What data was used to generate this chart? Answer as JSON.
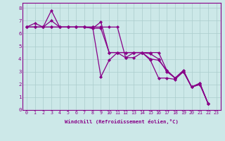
{
  "xlabel": "Windchill (Refroidissement éolien,°C)",
  "background_color": "#cce8e8",
  "line_color": "#880088",
  "xlim": [
    -0.5,
    23.5
  ],
  "ylim": [
    0,
    8.4
  ],
  "xticks": [
    0,
    1,
    2,
    3,
    4,
    5,
    6,
    7,
    8,
    9,
    10,
    11,
    12,
    13,
    14,
    15,
    16,
    17,
    18,
    19,
    20,
    21,
    22,
    23
  ],
  "yticks": [
    0,
    1,
    2,
    3,
    4,
    5,
    6,
    7,
    8
  ],
  "series": [
    {
      "x": [
        0,
        1,
        2,
        3,
        4,
        5,
        6,
        7,
        8,
        9,
        10,
        11,
        12,
        13,
        14,
        15,
        16,
        17,
        18,
        19,
        20,
        21,
        22
      ],
      "y": [
        6.5,
        6.8,
        6.5,
        7.8,
        6.5,
        6.5,
        6.5,
        6.5,
        6.5,
        2.6,
        3.9,
        4.5,
        4.1,
        4.5,
        4.5,
        4.0,
        3.9,
        3.1,
        2.5,
        3.1,
        1.8,
        2.1,
        0.5
      ]
    },
    {
      "x": [
        0,
        1,
        2,
        3,
        4,
        5,
        6,
        7,
        8,
        9,
        10,
        11,
        12,
        13,
        14,
        15,
        16,
        17,
        18,
        19,
        20,
        21,
        22
      ],
      "y": [
        6.5,
        6.5,
        6.5,
        7.0,
        6.5,
        6.5,
        6.5,
        6.5,
        6.4,
        6.4,
        4.5,
        4.5,
        4.5,
        4.5,
        4.5,
        4.5,
        4.5,
        3.1,
        2.5,
        3.1,
        1.8,
        2.1,
        0.5
      ]
    },
    {
      "x": [
        0,
        1,
        2,
        3,
        4,
        5,
        6,
        7,
        8,
        9,
        10,
        11,
        12,
        13,
        14,
        15,
        16,
        17,
        18,
        19,
        20,
        21,
        22
      ],
      "y": [
        6.5,
        6.5,
        6.5,
        6.5,
        6.5,
        6.5,
        6.5,
        6.5,
        6.5,
        6.5,
        6.5,
        6.5,
        4.1,
        4.1,
        4.5,
        3.9,
        2.5,
        2.5,
        2.4,
        3.0,
        1.8,
        2.0,
        0.5
      ]
    },
    {
      "x": [
        0,
        1,
        2,
        3,
        4,
        5,
        6,
        7,
        8,
        9,
        10,
        11,
        12,
        13,
        14,
        15,
        16,
        17,
        18,
        19,
        20,
        21,
        22
      ],
      "y": [
        6.5,
        6.5,
        6.5,
        6.5,
        6.5,
        6.5,
        6.5,
        6.5,
        6.4,
        6.9,
        4.5,
        4.5,
        4.5,
        4.5,
        4.5,
        4.4,
        4.0,
        3.0,
        2.5,
        3.0,
        1.8,
        2.0,
        0.5
      ]
    }
  ],
  "grid_color": "#aacccc",
  "marker": "D",
  "markersize": 2.0,
  "linewidth": 0.9,
  "tick_fontsize": 4.8,
  "xlabel_fontsize": 5.2
}
